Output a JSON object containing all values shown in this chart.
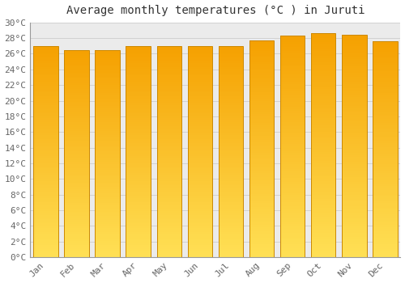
{
  "title": "Average monthly temperatures (°C ) in Juruti",
  "months": [
    "Jan",
    "Feb",
    "Mar",
    "Apr",
    "May",
    "Jun",
    "Jul",
    "Aug",
    "Sep",
    "Oct",
    "Nov",
    "Dec"
  ],
  "values": [
    27.0,
    26.5,
    26.5,
    27.0,
    27.0,
    27.0,
    27.0,
    27.7,
    28.3,
    28.6,
    28.4,
    27.6
  ],
  "bar_color_top": "#F5A800",
  "bar_color_bottom": "#FFE066",
  "bar_edge_color": "#CC8800",
  "background_color": "#FFFFFF",
  "plot_bg_color": "#EBEBEB",
  "grid_color": "#CCCCCC",
  "title_color": "#333333",
  "tick_label_color": "#666666",
  "ylim": [
    0,
    30
  ],
  "ytick_step": 2,
  "title_fontsize": 10,
  "tick_fontsize": 8
}
